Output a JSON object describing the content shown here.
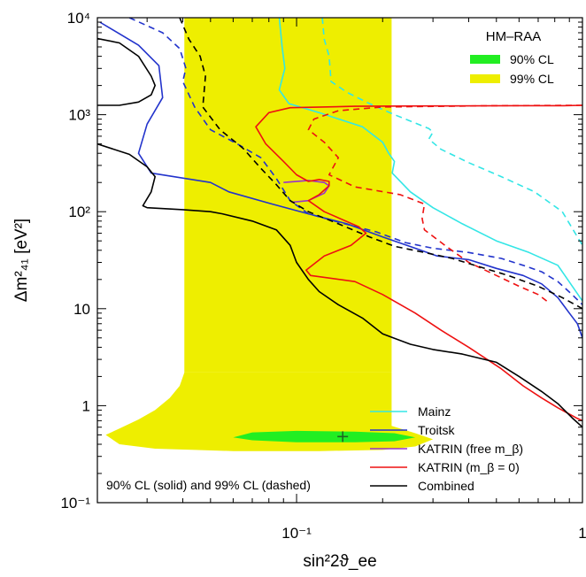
{
  "chart_data": {
    "type": "line",
    "xscale": "log",
    "yscale": "log",
    "xlim": [
      0.0201,
      1.0
    ],
    "ylim": [
      0.1,
      10000
    ],
    "xlabel": "sin²2ϑ_ee",
    "ylabel": "Δm²₄₁ [eV²]",
    "x_ticks": [
      {
        "value": 0.1,
        "label": "10⁻¹"
      },
      {
        "value": 1,
        "label": "1"
      }
    ],
    "y_ticks": [
      {
        "value": 0.1,
        "label": "10⁻¹"
      },
      {
        "value": 1,
        "label": "1"
      },
      {
        "value": 10,
        "label": "10"
      },
      {
        "value": 100,
        "label": "10²"
      },
      {
        "value": 1000,
        "label": "10³"
      },
      {
        "value": 10000,
        "label": "10⁴"
      }
    ],
    "regions": [
      {
        "name": "99% CL",
        "color": "#eeee00",
        "band": {
          "x": [
            0.0405,
            0.215
          ],
          "y": [
            2.2,
            10000
          ]
        },
        "tail": [
          [
            0.0405,
            2.2
          ],
          [
            0.039,
            1.6
          ],
          [
            0.036,
            1.2
          ],
          [
            0.032,
            0.9
          ],
          [
            0.028,
            0.72
          ],
          [
            0.024,
            0.58
          ],
          [
            0.0215,
            0.5
          ],
          [
            0.024,
            0.4
          ],
          [
            0.032,
            0.36
          ],
          [
            0.06,
            0.34
          ],
          [
            0.12,
            0.34
          ],
          [
            0.2,
            0.35
          ],
          [
            0.26,
            0.38
          ],
          [
            0.3,
            0.45
          ],
          [
            0.26,
            0.52
          ],
          [
            0.215,
            0.62
          ],
          [
            0.215,
            2.2
          ]
        ]
      },
      {
        "name": "90% CL",
        "color": "#22ee22",
        "ellipse": [
          [
            0.06,
            0.47
          ],
          [
            0.07,
            0.44
          ],
          [
            0.1,
            0.42
          ],
          [
            0.16,
            0.42
          ],
          [
            0.22,
            0.43
          ],
          [
            0.26,
            0.47
          ],
          [
            0.22,
            0.52
          ],
          [
            0.16,
            0.54
          ],
          [
            0.1,
            0.55
          ],
          [
            0.07,
            0.53
          ]
        ]
      }
    ],
    "best_fit": {
      "x": 0.145,
      "y": 0.48
    },
    "series": [
      {
        "name": "Mainz",
        "color": "#33e6e6",
        "solid": [
          [
            0.087,
            10000
          ],
          [
            0.089,
            5000
          ],
          [
            0.091,
            3000
          ],
          [
            0.087,
            1800
          ],
          [
            0.094,
            1300
          ],
          [
            0.12,
            1050
          ],
          [
            0.17,
            750
          ],
          [
            0.2,
            520
          ],
          [
            0.21,
            400
          ],
          [
            0.22,
            330
          ],
          [
            0.216,
            250
          ],
          [
            0.25,
            160
          ],
          [
            0.3,
            110
          ],
          [
            0.38,
            75
          ],
          [
            0.5,
            50
          ],
          [
            0.65,
            38
          ],
          [
            0.82,
            28
          ],
          [
            1.0,
            12
          ]
        ],
        "dashed": [
          [
            0.123,
            10000
          ],
          [
            0.125,
            6000
          ],
          [
            0.13,
            4000
          ],
          [
            0.132,
            2200
          ],
          [
            0.15,
            1700
          ],
          [
            0.18,
            1300
          ],
          [
            0.22,
            1000
          ],
          [
            0.26,
            820
          ],
          [
            0.29,
            720
          ],
          [
            0.3,
            660
          ],
          [
            0.29,
            560
          ],
          [
            0.32,
            440
          ],
          [
            0.4,
            320
          ],
          [
            0.52,
            230
          ],
          [
            0.68,
            160
          ],
          [
            0.85,
            100
          ],
          [
            1.0,
            45
          ]
        ]
      },
      {
        "name": "Troitsk",
        "color": "#2233cc",
        "solid": [
          [
            0.0205,
            9000
          ],
          [
            0.028,
            5200
          ],
          [
            0.033,
            3200
          ],
          [
            0.034,
            1500
          ],
          [
            0.03,
            800
          ],
          [
            0.028,
            400
          ],
          [
            0.031,
            250
          ],
          [
            0.05,
            200
          ],
          [
            0.058,
            160
          ],
          [
            0.082,
            120
          ],
          [
            0.11,
            95
          ],
          [
            0.15,
            75
          ],
          [
            0.2,
            55
          ],
          [
            0.26,
            42
          ],
          [
            0.31,
            35
          ],
          [
            0.4,
            32
          ],
          [
            0.5,
            26
          ],
          [
            0.62,
            22
          ],
          [
            0.72,
            18
          ],
          [
            0.82,
            13
          ],
          [
            0.9,
            9
          ],
          [
            0.96,
            7
          ],
          [
            1.0,
            5
          ]
        ],
        "dashed": [
          [
            0.026,
            10000
          ],
          [
            0.034,
            7000
          ],
          [
            0.039,
            4800
          ],
          [
            0.041,
            3000
          ],
          [
            0.04,
            2200
          ],
          [
            0.044,
            1200
          ],
          [
            0.05,
            700
          ],
          [
            0.062,
            500
          ],
          [
            0.075,
            360
          ],
          [
            0.085,
            220
          ],
          [
            0.095,
            130
          ],
          [
            0.11,
            95
          ],
          [
            0.14,
            78
          ],
          [
            0.19,
            62
          ],
          [
            0.24,
            48
          ],
          [
            0.3,
            42
          ],
          [
            0.4,
            38
          ],
          [
            0.52,
            33
          ],
          [
            0.62,
            28
          ],
          [
            0.72,
            24
          ],
          [
            0.82,
            19
          ],
          [
            0.92,
            14
          ],
          [
            1.0,
            11
          ]
        ]
      },
      {
        "name": "KATRIN (free m_β)",
        "color": "#9933cc",
        "solid": [
          [
            0.09,
            200
          ],
          [
            0.11,
            210
          ],
          [
            0.125,
            200
          ],
          [
            0.13,
            185
          ],
          [
            0.125,
            155
          ],
          [
            0.11,
            130
          ],
          [
            0.096,
            125
          ]
        ]
      },
      {
        "name": "KATRIN (m_β = 0)",
        "color": "#ee1111",
        "solid": [
          [
            1.0,
            1250
          ],
          [
            0.86,
            1240
          ],
          [
            0.6,
            1240
          ],
          [
            0.3,
            1230
          ],
          [
            0.16,
            1220
          ],
          [
            0.095,
            1180
          ],
          [
            0.08,
            1050
          ],
          [
            0.072,
            750
          ],
          [
            0.078,
            500
          ],
          [
            0.09,
            330
          ],
          [
            0.1,
            240
          ],
          [
            0.11,
            205
          ],
          [
            0.12,
            215
          ],
          [
            0.13,
            205
          ],
          [
            0.13,
            185
          ],
          [
            0.12,
            150
          ],
          [
            0.11,
            130
          ],
          [
            0.125,
            100
          ],
          [
            0.165,
            70
          ],
          [
            0.175,
            60
          ],
          [
            0.155,
            45
          ],
          [
            0.125,
            35
          ],
          [
            0.108,
            25
          ],
          [
            0.112,
            22
          ],
          [
            0.16,
            19
          ],
          [
            0.2,
            14
          ],
          [
            0.26,
            9
          ],
          [
            0.32,
            6
          ],
          [
            0.4,
            4
          ],
          [
            0.52,
            2.4
          ],
          [
            0.62,
            1.6
          ],
          [
            0.72,
            1.2
          ],
          [
            0.82,
            0.95
          ],
          [
            0.95,
            0.75
          ],
          [
            1.0,
            0.7
          ]
        ],
        "dashed": [
          [
            1.0,
            1250
          ],
          [
            0.5,
            1240
          ],
          [
            0.2,
            1200
          ],
          [
            0.14,
            1100
          ],
          [
            0.115,
            900
          ],
          [
            0.11,
            700
          ],
          [
            0.125,
            520
          ],
          [
            0.14,
            360
          ],
          [
            0.13,
            240
          ],
          [
            0.16,
            180
          ],
          [
            0.23,
            150
          ],
          [
            0.28,
            120
          ],
          [
            0.275,
            85
          ],
          [
            0.28,
            65
          ],
          [
            0.33,
            45
          ],
          [
            0.4,
            30
          ],
          [
            0.5,
            22
          ],
          [
            0.6,
            17
          ],
          [
            0.7,
            14
          ],
          [
            0.75,
            12
          ]
        ]
      },
      {
        "name": "Combined",
        "color": "#000000",
        "solid": [
          [
            0.0201,
            500
          ],
          [
            0.026,
            390
          ],
          [
            0.03,
            290
          ],
          [
            0.032,
            230
          ],
          [
            0.031,
            160
          ],
          [
            0.029,
            115
          ],
          [
            0.03,
            110
          ],
          [
            0.04,
            105
          ],
          [
            0.05,
            100
          ],
          [
            0.055,
            95
          ],
          [
            0.07,
            80
          ],
          [
            0.085,
            65
          ],
          [
            0.095,
            45
          ],
          [
            0.1,
            30
          ],
          [
            0.11,
            20
          ],
          [
            0.12,
            15
          ],
          [
            0.14,
            11
          ],
          [
            0.17,
            8
          ],
          [
            0.2,
            5.5
          ],
          [
            0.25,
            4.3
          ],
          [
            0.3,
            3.8
          ],
          [
            0.38,
            3.4
          ],
          [
            0.5,
            2.8
          ],
          [
            0.6,
            2
          ],
          [
            0.72,
            1.4
          ],
          [
            0.82,
            1.05
          ],
          [
            0.92,
            0.75
          ],
          [
            1.0,
            0.6
          ]
        ],
        "dashed": [
          [
            0.039,
            10000
          ],
          [
            0.042,
            6000
          ],
          [
            0.046,
            4000
          ],
          [
            0.048,
            2500
          ],
          [
            0.047,
            1200
          ],
          [
            0.054,
            700
          ],
          [
            0.065,
            450
          ],
          [
            0.075,
            280
          ],
          [
            0.085,
            190
          ],
          [
            0.095,
            130
          ],
          [
            0.11,
            100
          ],
          [
            0.14,
            75
          ],
          [
            0.18,
            55
          ],
          [
            0.22,
            44
          ],
          [
            0.28,
            38
          ],
          [
            0.35,
            33
          ],
          [
            0.42,
            28
          ],
          [
            0.55,
            22
          ],
          [
            0.7,
            17
          ],
          [
            0.85,
            13
          ],
          [
            1.0,
            10
          ]
        ],
        "island": [
          [
            0.0201,
            6100
          ],
          [
            0.024,
            5500
          ],
          [
            0.028,
            4000
          ],
          [
            0.031,
            2500
          ],
          [
            0.032,
            2000
          ],
          [
            0.031,
            1600
          ],
          [
            0.028,
            1350
          ],
          [
            0.024,
            1250
          ],
          [
            0.0201,
            1250
          ]
        ]
      }
    ],
    "legend": {
      "region_title": "HM–RAA",
      "region_entries": [
        "90% CL",
        "99% CL"
      ],
      "line_entries": [
        "Mainz",
        "Troitsk",
        "KATRIN (free m_β)",
        "KATRIN (m_β = 0)",
        "Combined"
      ]
    },
    "annotation": "90% CL (solid) and 99% CL (dashed)",
    "grid": false
  },
  "colors": {
    "frame": "#000000",
    "region99": "#eeee00",
    "region90": "#22ee22",
    "mainz": "#33e6e6",
    "troitsk": "#2233cc",
    "katrin_free": "#9933cc",
    "katrin_zero": "#ee1111",
    "combined": "#000000"
  }
}
